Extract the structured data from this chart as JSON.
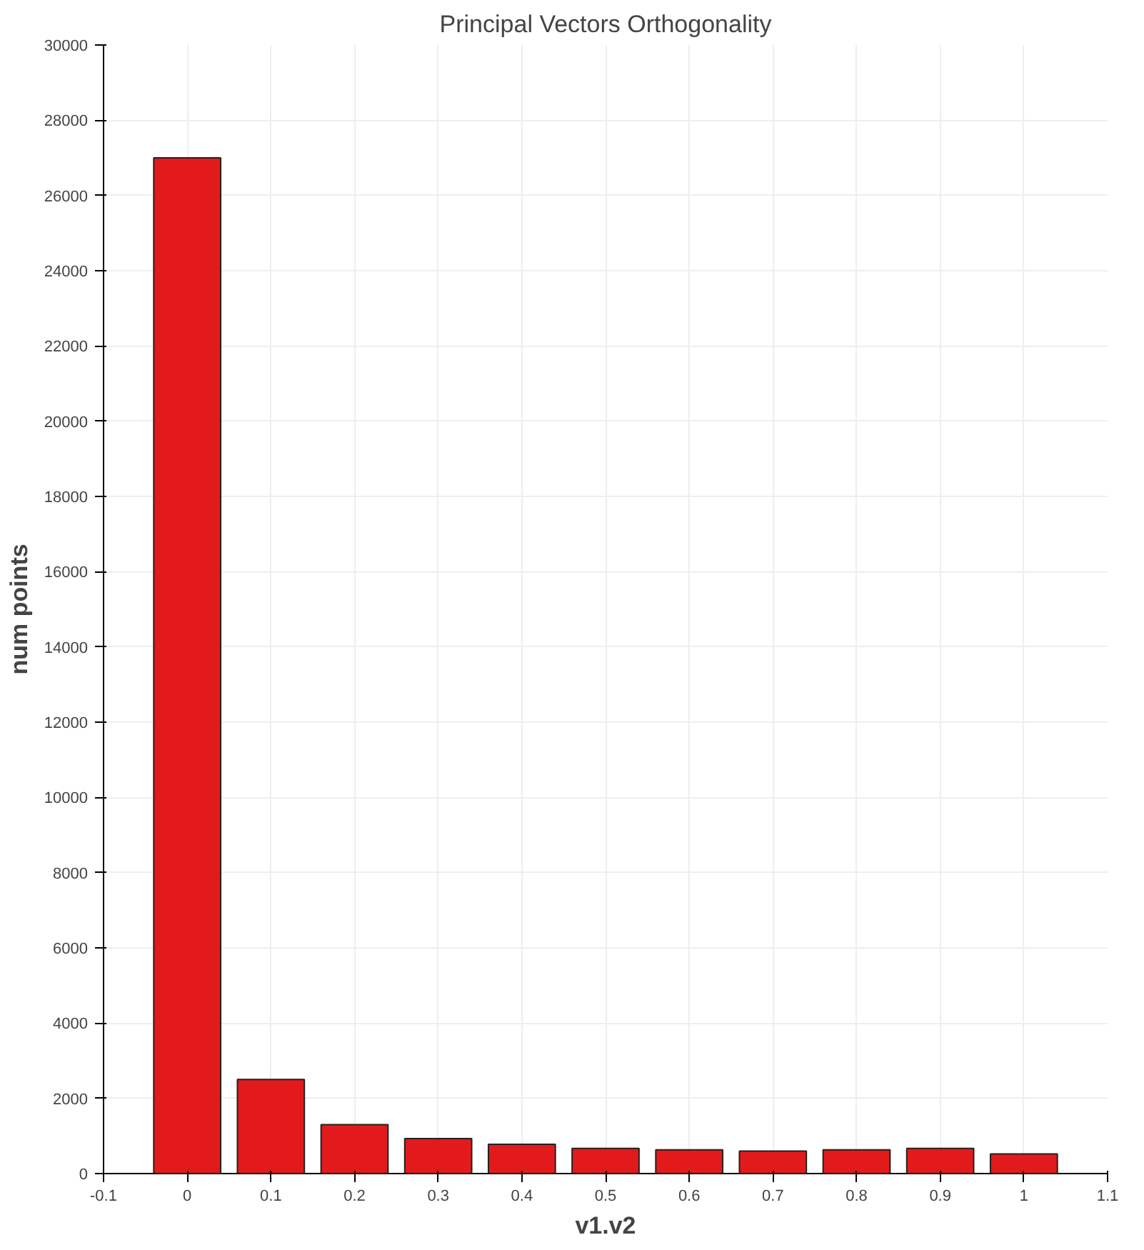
{
  "chart_data": {
    "type": "bar",
    "title": "Principal Vectors Orthogonality",
    "xlabel": "v1.v2",
    "ylabel": "num points",
    "x": [
      0,
      0.1,
      0.2,
      0.3,
      0.4,
      0.5,
      0.6,
      0.7,
      0.8,
      0.9,
      1
    ],
    "values": [
      27000,
      2500,
      1300,
      930,
      780,
      670,
      630,
      600,
      630,
      670,
      520
    ],
    "color": "#e31a1c",
    "xlim": [
      -0.1,
      1.1
    ],
    "xticks": [
      -0.1,
      0,
      0.1,
      0.2,
      0.3,
      0.4,
      0.5,
      0.6,
      0.7,
      0.8,
      0.9,
      1,
      1.1
    ],
    "ylim": [
      0,
      30000
    ],
    "yticks": [
      0,
      2000,
      4000,
      6000,
      8000,
      10000,
      12000,
      14000,
      16000,
      18000,
      20000,
      22000,
      24000,
      26000,
      28000,
      30000
    ],
    "grid": true
  }
}
